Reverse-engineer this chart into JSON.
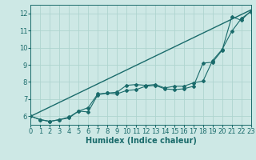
{
  "xlabel": "Humidex (Indice chaleur)",
  "ylabel": "",
  "xlim": [
    0,
    23
  ],
  "ylim": [
    5.5,
    12.5
  ],
  "xticks": [
    0,
    1,
    2,
    3,
    4,
    5,
    6,
    7,
    8,
    9,
    10,
    11,
    12,
    13,
    14,
    15,
    16,
    17,
    18,
    19,
    20,
    21,
    22,
    23
  ],
  "yticks": [
    6,
    7,
    8,
    9,
    10,
    11,
    12
  ],
  "bg_color": "#cde8e5",
  "line_color": "#1a6b6b",
  "grid_color": "#afd4cf",
  "line1_x": [
    0,
    1,
    2,
    3,
    4,
    5,
    6,
    7,
    8,
    9,
    10,
    11,
    12,
    13,
    14,
    15,
    16,
    17,
    18,
    19,
    20,
    21,
    22,
    23
  ],
  "line1_y": [
    6.0,
    5.8,
    5.7,
    5.8,
    5.9,
    6.3,
    6.25,
    7.25,
    7.35,
    7.3,
    7.5,
    7.55,
    7.75,
    7.8,
    7.6,
    7.55,
    7.6,
    7.75,
    9.1,
    9.15,
    9.85,
    11.8,
    11.6,
    12.15
  ],
  "line2_x": [
    0,
    1,
    2,
    3,
    4,
    5,
    6,
    7,
    8,
    9,
    10,
    11,
    12,
    13,
    14,
    15,
    16,
    17,
    18,
    19,
    20,
    21,
    22,
    23
  ],
  "line2_y": [
    6.0,
    5.8,
    5.7,
    5.8,
    5.95,
    6.3,
    6.5,
    7.3,
    7.35,
    7.4,
    7.8,
    7.85,
    7.8,
    7.85,
    7.65,
    7.75,
    7.75,
    7.95,
    8.05,
    9.25,
    9.9,
    10.95,
    11.7,
    12.1
  ],
  "line3_x": [
    0,
    23
  ],
  "line3_y": [
    6.0,
    12.2
  ],
  "font_size": 7
}
